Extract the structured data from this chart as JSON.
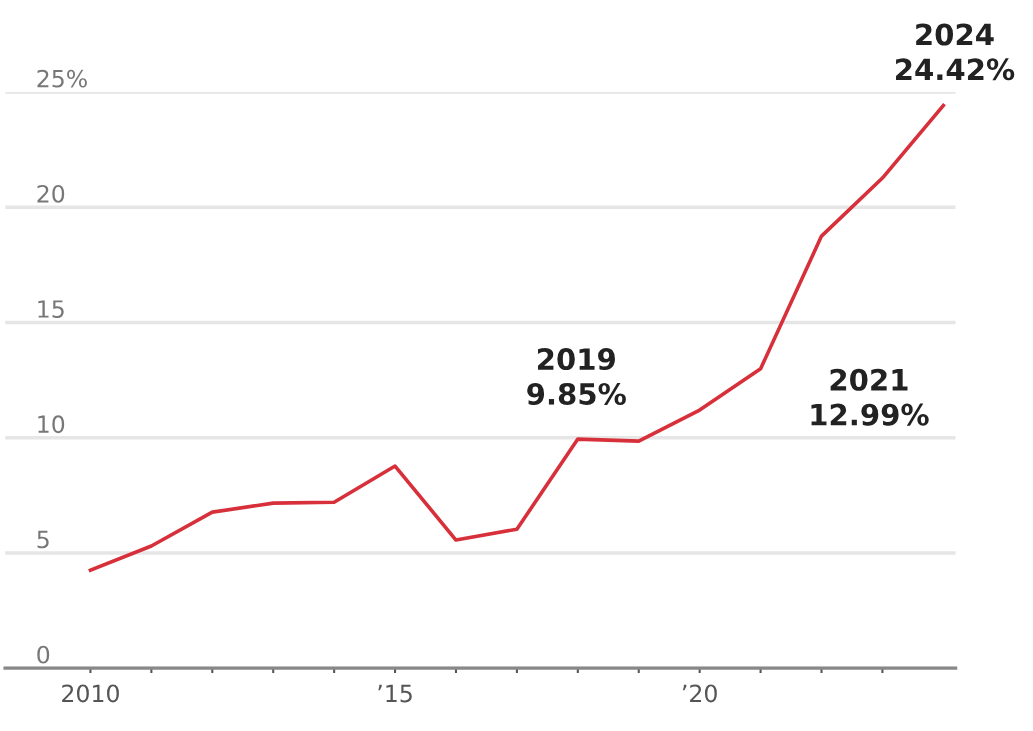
{
  "chart_data": {
    "type": "line",
    "x": [
      2010,
      2011,
      2012,
      2013,
      2014,
      2015,
      2016,
      2017,
      2018,
      2019,
      2020,
      2021,
      2022,
      2023,
      2024
    ],
    "series": [
      {
        "color": "#d7303a",
        "values": [
          4.25,
          5.3,
          6.77,
          7.16,
          7.2,
          8.77,
          5.56,
          6.03,
          9.94,
          9.85,
          11.2,
          12.99,
          18.75,
          21.27,
          24.42
        ]
      }
    ],
    "xlim": [
      2008.6,
      2024.2
    ],
    "xticks": [
      2010,
      {
        "value": 2011,
        "label": null
      },
      {
        "value": 2012,
        "label": null
      },
      {
        "value": 2013,
        "label": null
      },
      {
        "value": 2014,
        "label": null
      },
      {
        "value": 2015,
        "label": "’15"
      },
      {
        "value": 2016,
        "label": null
      },
      {
        "value": 2017,
        "label": null
      },
      {
        "value": 2018,
        "label": null
      },
      {
        "value": 2019,
        "label": null
      },
      {
        "value": 2020,
        "label": "’20"
      },
      {
        "value": 2021,
        "label": null
      },
      {
        "value": 2022,
        "label": null
      },
      {
        "value": 2023,
        "label": null
      }
    ],
    "ylim": [
      0,
      25
    ],
    "yticks": [
      0,
      5,
      10,
      15,
      20,
      {
        "value": 25,
        "label": "25%"
      }
    ],
    "grid": "y",
    "legend": false,
    "marker": "none",
    "line_style": "solid",
    "annotations": [
      {
        "text": "2019\n9.85%",
        "x": 2019,
        "y": 9.85
      },
      {
        "text": "2021\n12.99%",
        "x": 2021,
        "y": 12.99
      },
      {
        "text": "2024\n24.42%",
        "x": 2024,
        "y": 24.42
      }
    ]
  }
}
